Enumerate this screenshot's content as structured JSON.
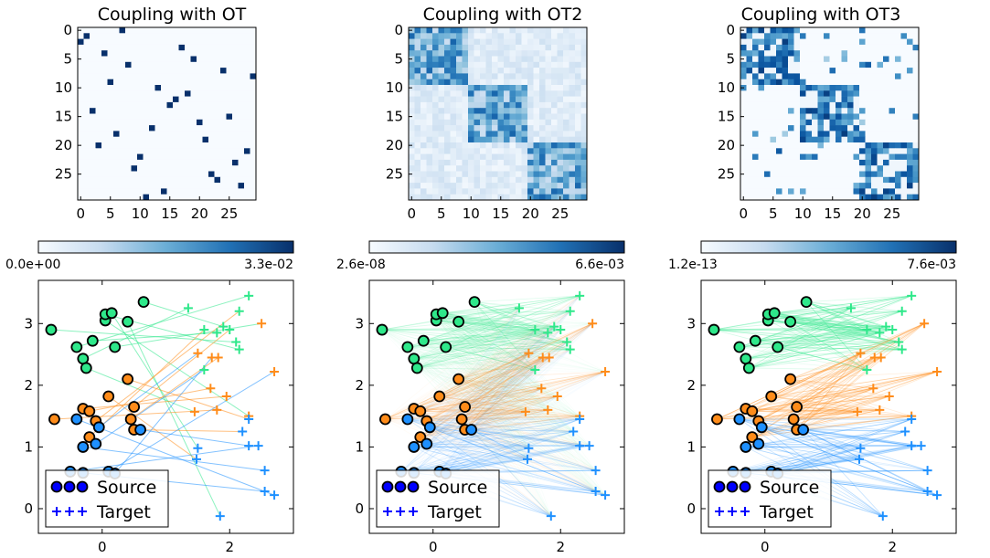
{
  "chart_data": [
    {
      "type": "heatmap",
      "title": "Coupling with OT",
      "xticks": [
        "0",
        "5",
        "10",
        "15",
        "20",
        "25"
      ],
      "yticks": [
        "0",
        "5",
        "10",
        "15",
        "20",
        "25"
      ],
      "grid_size": 30,
      "pattern": "permutation",
      "colorbar": {
        "min_label": "0.0e+00",
        "max_label": "3.3e-02",
        "min": 0.0,
        "max": 0.033
      }
    },
    {
      "type": "heatmap",
      "title": "Coupling with OT2",
      "xticks": [
        "0",
        "5",
        "10",
        "15",
        "20",
        "25"
      ],
      "yticks": [
        "0",
        "5",
        "10",
        "15",
        "20",
        "25"
      ],
      "grid_size": 30,
      "pattern": "smooth-blocks",
      "colorbar": {
        "min_label": "2.6e-08",
        "max_label": "6.6e-03",
        "min": 2.6e-08,
        "max": 0.0066
      }
    },
    {
      "type": "heatmap",
      "title": "Coupling with OT3",
      "xticks": [
        "0",
        "5",
        "10",
        "15",
        "20",
        "25"
      ],
      "yticks": [
        "0",
        "5",
        "10",
        "15",
        "20",
        "25"
      ],
      "grid_size": 30,
      "pattern": "sparse-blocks",
      "colorbar": {
        "min_label": "1.2e-13",
        "max_label": "7.6e-03",
        "min": 1.2e-13,
        "max": 0.0076
      }
    },
    {
      "type": "scatter",
      "title": "",
      "xlim": [
        -1,
        3
      ],
      "ylim": [
        -0.4,
        3.7
      ],
      "xticks": [
        "0",
        "2"
      ],
      "yticks": [
        "0",
        "1",
        "2",
        "3"
      ],
      "legend": {
        "position": "lower-left",
        "entries": [
          "Source",
          "Target"
        ]
      },
      "links": "sparse"
    },
    {
      "type": "scatter",
      "title": "",
      "xlim": [
        -1,
        3
      ],
      "ylim": [
        -0.4,
        3.7
      ],
      "xticks": [
        "0",
        "2"
      ],
      "yticks": [
        "0",
        "1",
        "2",
        "3"
      ],
      "legend": {
        "position": "lower-left",
        "entries": [
          "Source",
          "Target"
        ]
      },
      "links": "dense"
    },
    {
      "type": "scatter",
      "title": "",
      "xlim": [
        -1,
        3
      ],
      "ylim": [
        -0.4,
        3.7
      ],
      "xticks": [
        "0",
        "2"
      ],
      "yticks": [
        "0",
        "1",
        "2",
        "3"
      ],
      "legend": {
        "position": "lower-left",
        "entries": [
          "Source",
          "Target"
        ]
      },
      "links": "group"
    }
  ],
  "points": {
    "classes": [
      {
        "name": "class-0",
        "color": "#1e90ff"
      },
      {
        "name": "class-1",
        "color": "#ff8c1a"
      },
      {
        "name": "class-2",
        "color": "#2ee88a"
      }
    ],
    "source": [
      {
        "x": -0.8,
        "y": 2.9,
        "c": 2
      },
      {
        "x": -0.4,
        "y": 2.62,
        "c": 2
      },
      {
        "x": -0.3,
        "y": 2.43,
        "c": 2
      },
      {
        "x": -0.25,
        "y": 2.28,
        "c": 2
      },
      {
        "x": -0.15,
        "y": 2.72,
        "c": 2
      },
      {
        "x": 0.05,
        "y": 3.05,
        "c": 2
      },
      {
        "x": 0.05,
        "y": 3.15,
        "c": 2
      },
      {
        "x": 0.15,
        "y": 3.17,
        "c": 2
      },
      {
        "x": 0.4,
        "y": 3.03,
        "c": 2
      },
      {
        "x": 0.65,
        "y": 3.35,
        "c": 2
      },
      {
        "x": 0.2,
        "y": 2.62,
        "c": 2
      },
      {
        "x": -0.75,
        "y": 1.45,
        "c": 1
      },
      {
        "x": -0.3,
        "y": 1.62,
        "c": 1
      },
      {
        "x": -0.2,
        "y": 1.58,
        "c": 1
      },
      {
        "x": -0.1,
        "y": 1.42,
        "c": 1
      },
      {
        "x": 0.1,
        "y": 1.82,
        "c": 1
      },
      {
        "x": 0.4,
        "y": 2.1,
        "c": 1
      },
      {
        "x": 0.45,
        "y": 1.45,
        "c": 1
      },
      {
        "x": 0.5,
        "y": 1.65,
        "c": 1
      },
      {
        "x": 0.5,
        "y": 1.28,
        "c": 1
      },
      {
        "x": -0.2,
        "y": 1.16,
        "c": 1
      },
      {
        "x": -0.4,
        "y": 1.45,
        "c": 0
      },
      {
        "x": -0.05,
        "y": 1.32,
        "c": 0
      },
      {
        "x": -0.3,
        "y": 1.0,
        "c": 0
      },
      {
        "x": -0.1,
        "y": 1.05,
        "c": 0
      },
      {
        "x": 0.6,
        "y": 1.28,
        "c": 0
      },
      {
        "x": -0.5,
        "y": 0.6,
        "c": 0
      },
      {
        "x": -0.3,
        "y": 0.58,
        "c": 0
      },
      {
        "x": 0.1,
        "y": 0.6,
        "c": 0
      },
      {
        "x": 0.2,
        "y": 0.57,
        "c": 0
      }
    ],
    "target": [
      {
        "x": 1.35,
        "y": 3.25,
        "c": 2
      },
      {
        "x": 2.3,
        "y": 3.45,
        "c": 2
      },
      {
        "x": 2.15,
        "y": 3.2,
        "c": 2
      },
      {
        "x": 1.6,
        "y": 2.9,
        "c": 2
      },
      {
        "x": 1.8,
        "y": 2.85,
        "c": 2
      },
      {
        "x": 1.9,
        "y": 2.95,
        "c": 2
      },
      {
        "x": 2.0,
        "y": 2.9,
        "c": 2
      },
      {
        "x": 2.1,
        "y": 2.7,
        "c": 2
      },
      {
        "x": 2.15,
        "y": 2.58,
        "c": 2
      },
      {
        "x": 1.6,
        "y": 2.25,
        "c": 2
      },
      {
        "x": 1.5,
        "y": 2.52,
        "c": 1
      },
      {
        "x": 1.72,
        "y": 2.45,
        "c": 1
      },
      {
        "x": 1.82,
        "y": 2.45,
        "c": 1
      },
      {
        "x": 2.5,
        "y": 3.0,
        "c": 1
      },
      {
        "x": 2.7,
        "y": 2.22,
        "c": 1
      },
      {
        "x": 1.7,
        "y": 1.95,
        "c": 1
      },
      {
        "x": 1.95,
        "y": 1.82,
        "c": 1
      },
      {
        "x": 1.45,
        "y": 1.57,
        "c": 1
      },
      {
        "x": 1.8,
        "y": 1.6,
        "c": 1
      },
      {
        "x": 2.3,
        "y": 1.5,
        "c": 1
      },
      {
        "x": 2.3,
        "y": 1.45,
        "c": 0
      },
      {
        "x": 2.2,
        "y": 1.25,
        "c": 0
      },
      {
        "x": 2.3,
        "y": 1.02,
        "c": 0
      },
      {
        "x": 2.45,
        "y": 1.02,
        "c": 0
      },
      {
        "x": 1.5,
        "y": 0.98,
        "c": 0
      },
      {
        "x": 1.48,
        "y": 0.8,
        "c": 0
      },
      {
        "x": 2.55,
        "y": 0.62,
        "c": 0
      },
      {
        "x": 2.55,
        "y": 0.28,
        "c": 0
      },
      {
        "x": 2.7,
        "y": 0.22,
        "c": 0
      },
      {
        "x": 1.85,
        "y": -0.12,
        "c": 0
      }
    ]
  }
}
